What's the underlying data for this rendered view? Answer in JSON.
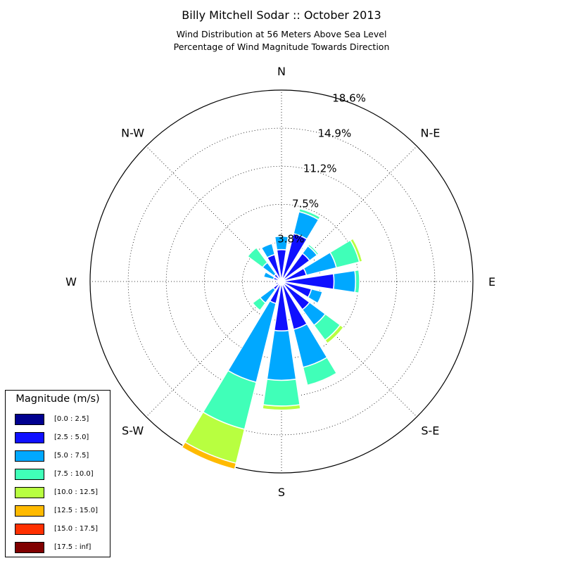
{
  "header": {
    "title": "Billy Mitchell Sodar :: October 2013",
    "subtitle1": "Wind Distribution at 56 Meters Above Sea Level",
    "subtitle2": "Percentage of Wind Magnitude Towards Direction"
  },
  "legend": {
    "title": "Magnitude (m/s)",
    "items": [
      {
        "label": "[0.0 : 2.5]",
        "color": "#00008f"
      },
      {
        "label": "[2.5 : 5.0]",
        "color": "#0f10ff"
      },
      {
        "label": "[5.0 : 7.5]",
        "color": "#00a8ff"
      },
      {
        "label": "[7.5 : 10.0]",
        "color": "#40ffb8"
      },
      {
        "label": "[10.0 : 12.5]",
        "color": "#b8ff40"
      },
      {
        "label": "[12.5 : 15.0]",
        "color": "#ffba00"
      },
      {
        "label": "[15.0 : 17.5]",
        "color": "#ff3000"
      },
      {
        "label": "[17.5 : inf]",
        "color": "#800000"
      }
    ]
  },
  "chart_data": {
    "type": "windrose",
    "title": "Billy Mitchell Sodar :: October 2013",
    "direction_labels": [
      "N",
      "N-E",
      "E",
      "S-E",
      "S",
      "S-W",
      "W",
      "N-W"
    ],
    "radial_ticks": [
      "3.8%",
      "7.5%",
      "11.2%",
      "14.9%",
      "18.6%"
    ],
    "radial_tick_values": [
      3.8,
      7.5,
      11.2,
      14.9,
      18.6
    ],
    "radial_max": 18.6,
    "grid": true,
    "legend_position": "bottom-left",
    "bins": [
      "[0.0 : 2.5]",
      "[2.5 : 5.0]",
      "[5.0 : 7.5]",
      "[7.5 : 10.0]",
      "[10.0 : 12.5]",
      "[12.5 : 15.0]",
      "[15.0 : 17.5]",
      "[17.5 : inf]"
    ],
    "directions_deg": [
      0,
      22.5,
      45,
      67.5,
      90,
      112.5,
      135,
      157.5,
      180,
      202.5,
      225,
      247.5,
      270,
      292.5,
      337.5,
      315
    ],
    "cumulative_percent": [
      [
        0.2,
        3.1,
        4.4,
        4.4,
        4.4,
        4.4,
        4.4,
        4.4
      ],
      [
        0.2,
        4.8,
        7.0,
        7.3,
        7.3,
        7.3,
        7.3,
        7.3
      ],
      [
        0.2,
        3.4,
        4.3,
        4.5,
        4.5,
        4.5,
        4.5,
        4.5
      ],
      [
        0.3,
        2.5,
        5.5,
        7.8,
        8.1,
        8.1,
        8.1,
        8.1
      ],
      [
        0.3,
        5.1,
        7.2,
        7.6,
        7.6,
        7.6,
        7.6,
        7.6
      ],
      [
        0.3,
        3.0,
        4.1,
        4.1,
        4.1,
        4.1,
        4.1,
        4.1
      ],
      [
        0.3,
        3.4,
        5.3,
        7.1,
        7.5,
        7.5,
        7.5,
        7.5
      ],
      [
        0.3,
        4.8,
        8.6,
        10.4,
        10.5,
        10.5,
        10.5,
        10.5
      ],
      [
        0.3,
        4.8,
        9.6,
        12.1,
        12.5,
        12.5,
        12.5,
        12.5
      ],
      [
        0.3,
        2.2,
        10.1,
        14.8,
        18.2,
        18.8,
        18.8,
        18.8
      ],
      [
        0.3,
        1.0,
        2.6,
        3.5,
        3.5,
        3.5,
        3.5,
        3.5
      ],
      [
        0.3,
        0.6,
        0.6,
        0.6,
        0.6,
        0.6,
        0.6,
        0.6
      ],
      [
        0.3,
        0.5,
        0.5,
        0.5,
        0.5,
        0.5,
        0.5,
        0.5
      ],
      [
        0.3,
        0.8,
        1.8,
        1.8,
        1.8,
        1.8,
        1.8,
        1.8
      ],
      [
        0.3,
        2.7,
        3.8,
        3.8,
        3.8,
        3.8,
        3.8,
        3.8
      ],
      [
        0.3,
        0.9,
        2.3,
        4.1,
        4.1,
        4.1,
        4.1,
        4.1
      ]
    ]
  }
}
